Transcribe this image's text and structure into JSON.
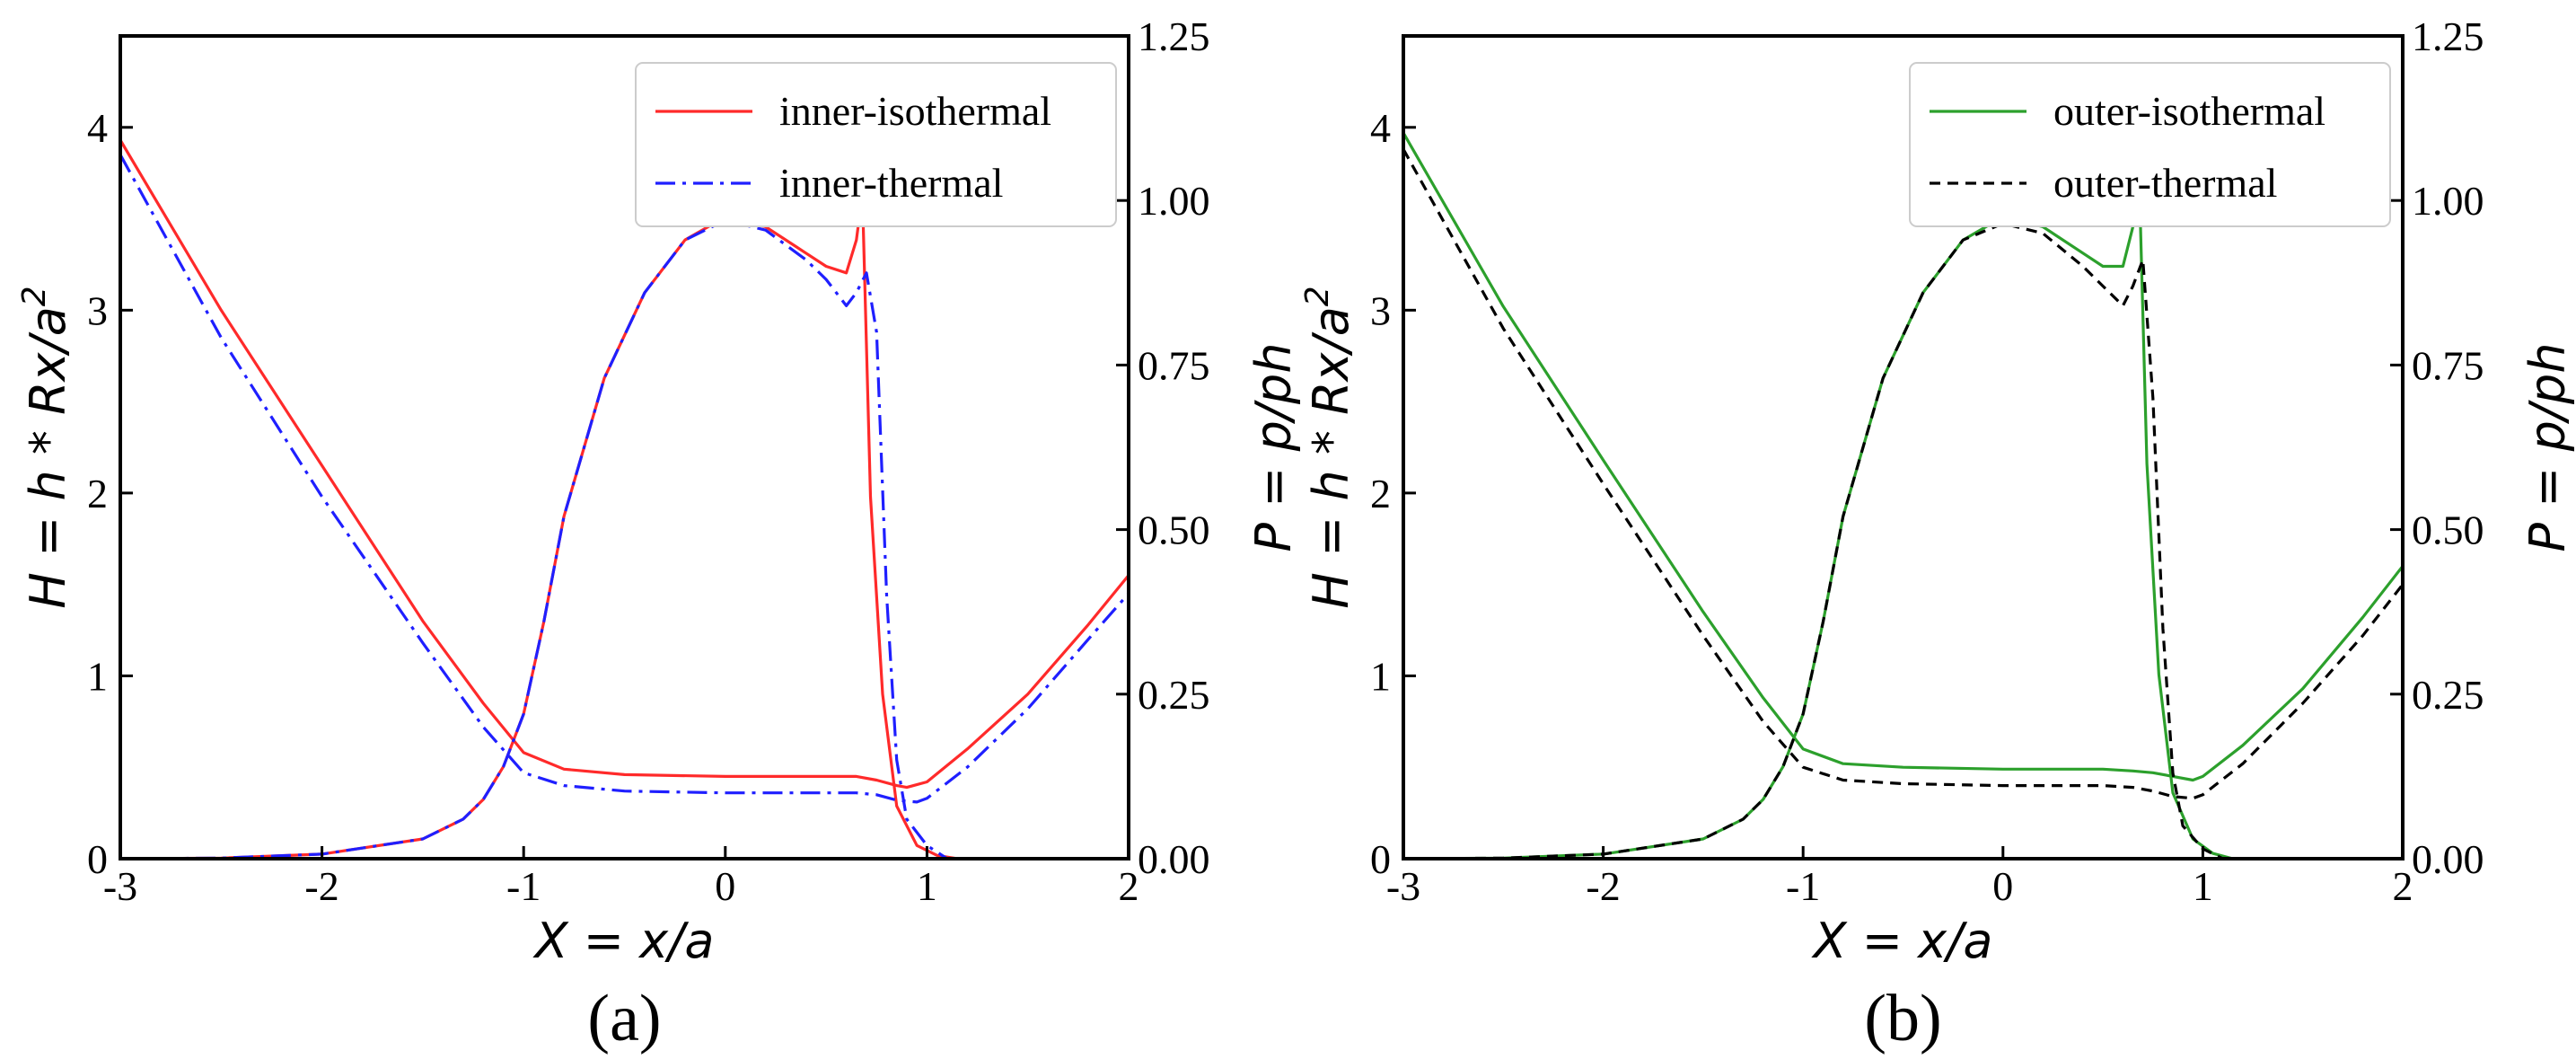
{
  "chart_data": [
    {
      "type": "line",
      "caption": "(a)",
      "xlabel": "X = x/a",
      "ylabel_left": "H = h * Rx/a",
      "ylabel_left_sup": "2",
      "ylabel_right": "P = p/ph",
      "xlim": [
        -3,
        2
      ],
      "ylim_left": [
        0,
        4.5
      ],
      "ylim_right": [
        0,
        1.25
      ],
      "xticks": [
        "-3",
        "-2",
        "-1",
        "0",
        "1",
        "2"
      ],
      "yticks_left": [
        "0",
        "1",
        "2",
        "3",
        "4"
      ],
      "yticks_right": [
        "0.00",
        "0.25",
        "0.50",
        "0.75",
        "1.00",
        "1.25"
      ],
      "legend_position": "top-right",
      "legend": [
        {
          "label": "inner-isothermal",
          "color": "#ff2a2a",
          "style": "solid"
        },
        {
          "label": "inner-thermal",
          "color": "#1f1fff",
          "style": "dashdot"
        }
      ],
      "series": [
        {
          "name": "inner-isothermal H",
          "axis": "left",
          "color": "#ff2a2a",
          "style": "solid",
          "x": [
            -3,
            -2.5,
            -2,
            -1.5,
            -1.2,
            -1.0,
            -0.8,
            -0.5,
            0,
            0.5,
            0.65,
            0.75,
            0.85,
            0.9,
            1.0,
            1.2,
            1.5,
            1.8,
            2.0
          ],
          "y": [
            3.93,
            3.0,
            2.15,
            1.3,
            0.85,
            0.58,
            0.49,
            0.46,
            0.45,
            0.45,
            0.45,
            0.43,
            0.4,
            0.39,
            0.42,
            0.6,
            0.9,
            1.28,
            1.55
          ]
        },
        {
          "name": "inner-isothermal P",
          "axis": "right",
          "color": "#ff2a2a",
          "style": "solid",
          "x": [
            -3,
            -2.5,
            -2,
            -1.5,
            -1.3,
            -1.2,
            -1.1,
            -1.0,
            -0.9,
            -0.8,
            -0.6,
            -0.4,
            -0.2,
            0,
            0.2,
            0.4,
            0.5,
            0.6,
            0.65,
            0.68,
            0.72,
            0.78,
            0.85,
            0.95,
            1.05,
            1.15
          ],
          "y": [
            0,
            0.001,
            0.007,
            0.03,
            0.06,
            0.09,
            0.14,
            0.22,
            0.36,
            0.52,
            0.73,
            0.86,
            0.94,
            0.975,
            0.96,
            0.92,
            0.9,
            0.89,
            0.94,
            1.01,
            0.55,
            0.25,
            0.08,
            0.02,
            0.005,
            0
          ]
        },
        {
          "name": "inner-thermal H",
          "axis": "left",
          "color": "#1f1fff",
          "style": "dashdot",
          "x": [
            -3,
            -2.5,
            -2,
            -1.5,
            -1.2,
            -1.0,
            -0.8,
            -0.5,
            0,
            0.5,
            0.65,
            0.75,
            0.85,
            0.95,
            1.0,
            1.2,
            1.5,
            1.8,
            2.0
          ],
          "y": [
            3.85,
            2.85,
            1.98,
            1.18,
            0.72,
            0.47,
            0.4,
            0.37,
            0.36,
            0.36,
            0.36,
            0.35,
            0.32,
            0.31,
            0.33,
            0.5,
            0.82,
            1.2,
            1.45
          ]
        },
        {
          "name": "inner-thermal P",
          "axis": "right",
          "color": "#1f1fff",
          "style": "dashdot",
          "x": [
            -3,
            -2.5,
            -2,
            -1.5,
            -1.3,
            -1.2,
            -1.1,
            -1.0,
            -0.9,
            -0.8,
            -0.6,
            -0.4,
            -0.2,
            0,
            0.2,
            0.4,
            0.5,
            0.6,
            0.65,
            0.7,
            0.75,
            0.8,
            0.85,
            0.9,
            1.0,
            1.1
          ],
          "y": [
            0,
            0.001,
            0.007,
            0.03,
            0.06,
            0.09,
            0.14,
            0.22,
            0.36,
            0.52,
            0.73,
            0.86,
            0.94,
            0.97,
            0.955,
            0.91,
            0.88,
            0.84,
            0.86,
            0.89,
            0.8,
            0.4,
            0.15,
            0.06,
            0.02,
            0
          ]
        }
      ]
    },
    {
      "type": "line",
      "caption": "(b)",
      "xlabel": "X = x/a",
      "ylabel_left": "H = h * Rx/a",
      "ylabel_left_sup": "2",
      "ylabel_right": "P = p/ph",
      "xlim": [
        -3,
        2
      ],
      "ylim_left": [
        0,
        4.5
      ],
      "ylim_right": [
        0,
        1.25
      ],
      "xticks": [
        "-3",
        "-2",
        "-1",
        "0",
        "1",
        "2"
      ],
      "yticks_left": [
        "0",
        "1",
        "2",
        "3",
        "4"
      ],
      "yticks_right": [
        "0.00",
        "0.25",
        "0.50",
        "0.75",
        "1.00",
        "1.25"
      ],
      "legend_position": "top-right",
      "legend": [
        {
          "label": "outer-isothermal",
          "color": "#2ca02c",
          "style": "solid"
        },
        {
          "label": "outer-thermal",
          "color": "#000000",
          "style": "dashed"
        }
      ],
      "series": [
        {
          "name": "outer-isothermal H",
          "axis": "left",
          "color": "#2ca02c",
          "style": "solid",
          "x": [
            -3,
            -2.5,
            -2,
            -1.5,
            -1.2,
            -1.0,
            -0.8,
            -0.5,
            0,
            0.5,
            0.65,
            0.75,
            0.85,
            0.95,
            1.0,
            1.2,
            1.5,
            1.8,
            2.0
          ],
          "y": [
            3.97,
            3.02,
            2.18,
            1.35,
            0.88,
            0.6,
            0.52,
            0.5,
            0.49,
            0.49,
            0.48,
            0.47,
            0.45,
            0.43,
            0.45,
            0.62,
            0.93,
            1.32,
            1.6
          ]
        },
        {
          "name": "outer-isothermal P",
          "axis": "right",
          "color": "#2ca02c",
          "style": "solid",
          "x": [
            -3,
            -2.5,
            -2,
            -1.5,
            -1.3,
            -1.2,
            -1.1,
            -1.0,
            -0.9,
            -0.8,
            -0.6,
            -0.4,
            -0.2,
            0,
            0.2,
            0.4,
            0.5,
            0.6,
            0.65,
            0.68,
            0.72,
            0.78,
            0.85,
            0.95,
            1.05,
            1.15
          ],
          "y": [
            0,
            0.001,
            0.007,
            0.03,
            0.06,
            0.09,
            0.14,
            0.22,
            0.36,
            0.52,
            0.73,
            0.86,
            0.94,
            0.975,
            0.96,
            0.92,
            0.9,
            0.9,
            0.96,
            1.05,
            0.6,
            0.28,
            0.1,
            0.03,
            0.008,
            0
          ]
        },
        {
          "name": "outer-thermal H",
          "axis": "left",
          "color": "#000000",
          "style": "dashed",
          "x": [
            -3,
            -2.5,
            -2,
            -1.5,
            -1.2,
            -1.0,
            -0.8,
            -0.5,
            0,
            0.5,
            0.65,
            0.75,
            0.85,
            0.95,
            1.0,
            1.2,
            1.5,
            1.8,
            2.0
          ],
          "y": [
            3.88,
            2.9,
            2.05,
            1.22,
            0.75,
            0.5,
            0.43,
            0.41,
            0.4,
            0.4,
            0.39,
            0.37,
            0.34,
            0.33,
            0.35,
            0.52,
            0.85,
            1.22,
            1.5
          ]
        },
        {
          "name": "outer-thermal P",
          "axis": "right",
          "color": "#000000",
          "style": "dashed",
          "x": [
            -3,
            -2.5,
            -2,
            -1.5,
            -1.3,
            -1.2,
            -1.1,
            -1.0,
            -0.9,
            -0.8,
            -0.6,
            -0.4,
            -0.2,
            0,
            0.2,
            0.4,
            0.5,
            0.6,
            0.65,
            0.7,
            0.75,
            0.8,
            0.85,
            0.9,
            1.0,
            1.1
          ],
          "y": [
            0,
            0.001,
            0.007,
            0.03,
            0.06,
            0.09,
            0.14,
            0.22,
            0.36,
            0.52,
            0.73,
            0.86,
            0.94,
            0.965,
            0.95,
            0.9,
            0.87,
            0.84,
            0.87,
            0.91,
            0.7,
            0.35,
            0.13,
            0.05,
            0.015,
            0
          ]
        }
      ]
    }
  ]
}
